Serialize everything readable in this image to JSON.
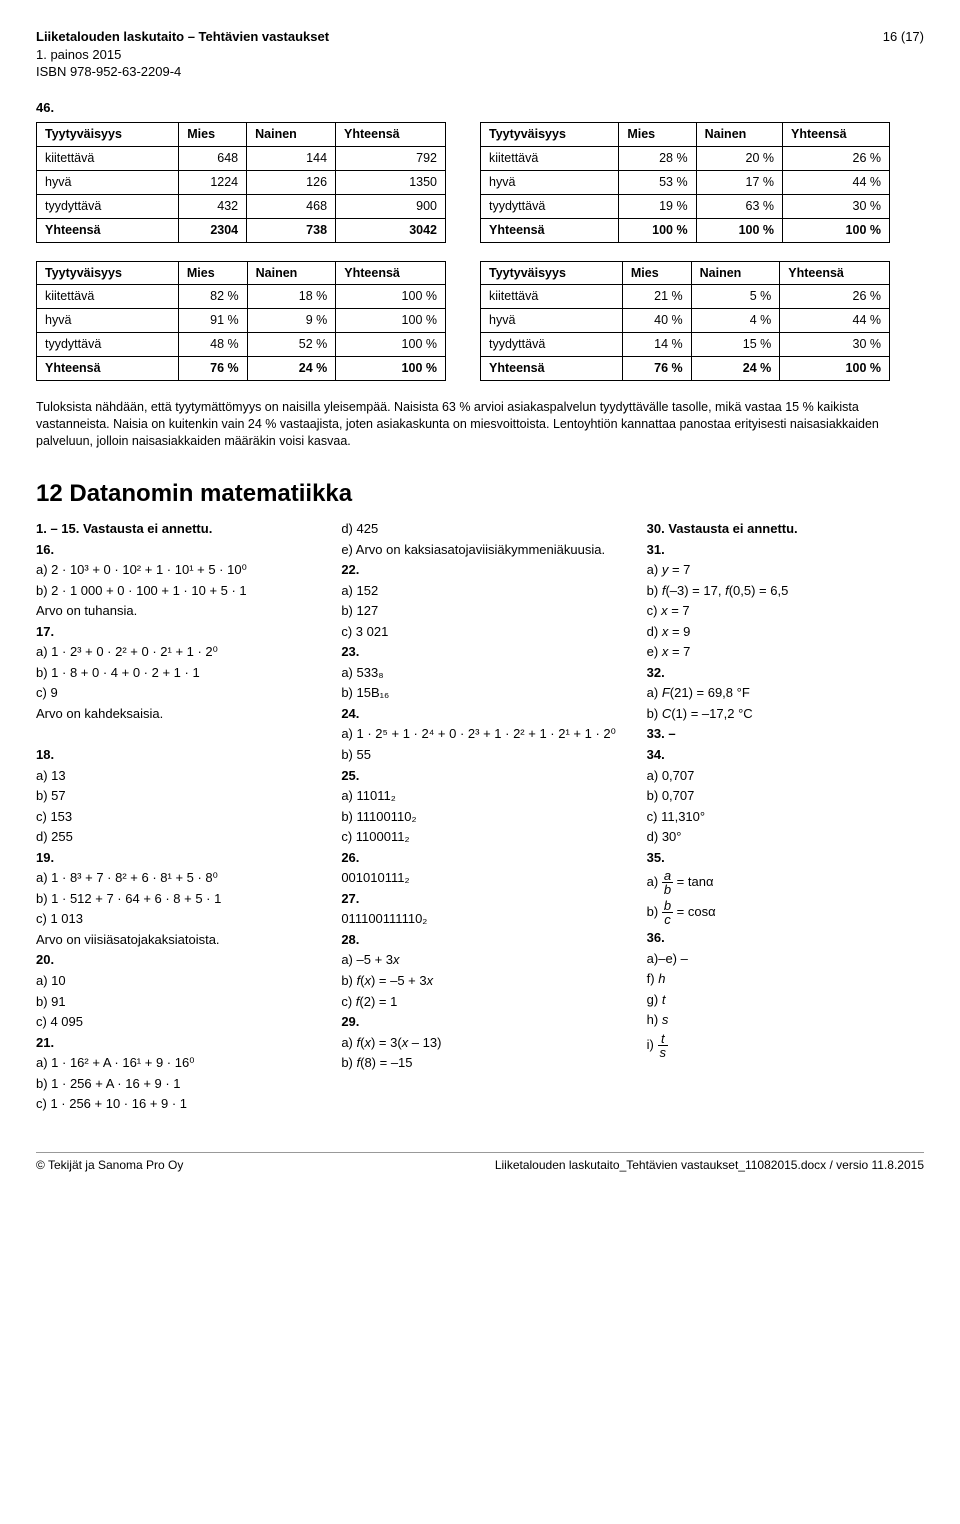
{
  "header": {
    "title": "Liiketalouden laskutaito – Tehtävien vastaukset",
    "edition": "1. painos 2015",
    "isbn": "ISBN 978-952-63-2209-4",
    "page": "16 (17)"
  },
  "q46": "46.",
  "tableHeaders": [
    "Tyytyväisyys",
    "Mies",
    "Nainen",
    "Yhteensä"
  ],
  "t1": {
    "rows": [
      [
        "kiitettävä",
        "648",
        "144",
        "792"
      ],
      [
        "hyvä",
        "1224",
        "126",
        "1350"
      ],
      [
        "tyydyttävä",
        "432",
        "468",
        "900"
      ],
      [
        "Yhteensä",
        "2304",
        "738",
        "3042"
      ]
    ]
  },
  "t2": {
    "rows": [
      [
        "kiitettävä",
        "28 %",
        "20 %",
        "26 %"
      ],
      [
        "hyvä",
        "53 %",
        "17 %",
        "44 %"
      ],
      [
        "tyydyttävä",
        "19 %",
        "63 %",
        "30 %"
      ],
      [
        "Yhteensä",
        "100 %",
        "100 %",
        "100 %"
      ]
    ]
  },
  "t3": {
    "rows": [
      [
        "kiitettävä",
        "82 %",
        "18 %",
        "100 %"
      ],
      [
        "hyvä",
        "91 %",
        "9 %",
        "100 %"
      ],
      [
        "tyydyttävä",
        "48 %",
        "52 %",
        "100 %"
      ],
      [
        "Yhteensä",
        "76 %",
        "24 %",
        "100 %"
      ]
    ]
  },
  "t4": {
    "rows": [
      [
        "kiitettävä",
        "21 %",
        "5 %",
        "26 %"
      ],
      [
        "hyvä",
        "40 %",
        "4 %",
        "44 %"
      ],
      [
        "tyydyttävä",
        "14 %",
        "15 %",
        "30 %"
      ],
      [
        "Yhteensä",
        "76 %",
        "24 %",
        "100 %"
      ]
    ]
  },
  "analysis": "Tuloksista nähdään, että tyytymättömyys on naisilla yleisempää. Naisista 63 % arvioi asiakaspalvelun tyydyttävälle tasolle, mikä vastaa 15 % kaikista vastanneista. Naisia on kuitenkin vain 24 % vastaajista, joten asiakaskunta on miesvoittoista. Lentoyhtiön kannattaa panostaa erityisesti naisasiakkaiden palveluun, jolloin naisasiakkaiden määräkin voisi kasvaa.",
  "sectionTitle": "12 Datanomin matematiikka",
  "col1": {
    "l1": "1. – 15. Vastausta ei annettu.",
    "l16": "16.",
    "l16a": "a) 2 · 10³ + 0 · 10² + 1 · 10¹ + 5 · 10⁰",
    "l16b": "b) 2 · 1 000 + 0 · 100 + 1 · 10 + 5 · 1",
    "l16c": "Arvo on tuhansia.",
    "l17": "17.",
    "l17a": "a) 1 · 2³ + 0 · 2² + 0 · 2¹ + 1 · 2⁰",
    "l17b": "b) 1 · 8 + 0 · 4 + 0 · 2 + 1 · 1",
    "l17c": "c) 9",
    "l17d": "Arvo on kahdeksaisia.",
    "l18": "18.",
    "l18a": "a) 13",
    "l18b": "b) 57",
    "l18c": "c) 153",
    "l18d": "d) 255",
    "l19": "19.",
    "l19a": "a) 1 · 8³ + 7 · 8² + 6 · 8¹ + 5 · 8⁰",
    "l19b": "b) 1 · 512 + 7 · 64 + 6 · 8 + 5 · 1",
    "l19c": "c) 1 013",
    "l19d": "Arvo on viisiäsatojakaksiatoista.",
    "l20": "20.",
    "l20a": "a) 10",
    "l20b": "b) 91",
    "l20c": "c) 4 095",
    "l21": "21.",
    "l21a": "a) 1 · 16² + A · 16¹ + 9 · 16⁰",
    "l21b": "b) 1 · 256 + A · 16 + 9 · 1",
    "l21c": "c) 1 · 256 + 10 · 16 + 9 · 1"
  },
  "col2": {
    "d425": "d) 425",
    "eArvo": "e) Arvo on kaksiasatojaviisiäkymmeniäkuusia.",
    "l22": "22.",
    "l22a": "a) 152",
    "l22b": "b) 127",
    "l22c": "c) 3 021",
    "l23": "23.",
    "l23a": "a) 533₈",
    "l23b": "b) 15B₁₆",
    "l24": "24.",
    "l24a": "a) 1 · 2⁵ + 1 · 2⁴ + 0 · 2³ + 1 · 2² + 1 · 2¹ + 1 · 2⁰",
    "l24b": "b) 55",
    "l25": "25.",
    "l25a": "a) 11011₂",
    "l25b": "b) 11100110₂",
    "l25c": "c) 1100011₂",
    "l26": "26.",
    "l26a": "001010111₂",
    "l27": "27.",
    "l27a": "011100111110₂",
    "l28": "28.",
    "l28a": "a) –5 + 3x",
    "l28b": "b) f(x) = –5 + 3x",
    "l28c": "c) f(2) = 1",
    "l29": "29.",
    "l29a": "a) f(x) = 3(x – 13)",
    "l29b": "b) f(8) = –15"
  },
  "col3": {
    "l30": "30. Vastausta ei annettu.",
    "l31": "31.",
    "l31a": "a) y = 7",
    "l31b": "b) f(–3) = 17, f(0,5) = 6,5",
    "l31c": "c) x = 7",
    "l31d": "d) x = 9",
    "l31e": "e) x = 7",
    "l32": "32.",
    "l32a": "a) F(21) = 69,8 °F",
    "l32b": "b) C(1) = –17,2 °C",
    "l33": "33. –",
    "l34": "34.",
    "l34a": "a) 0,707",
    "l34b": "b) 0,707",
    "l34c": "c) 11,310°",
    "l34d": "d) 30°",
    "l35": "35.",
    "l35aPre": "a) ",
    "l35aN": "a",
    "l35aD": "b",
    "l35aPost": " = tanα",
    "l35bPre": "b) ",
    "l35bN": "b",
    "l35bD": "c",
    "l35bPost": " = cosα",
    "l36": "36.",
    "l36a": "a)–e) –",
    "l36f": "f) h",
    "l36g": "g) t",
    "l36h": "h) s",
    "l36iPre": "i) ",
    "l36iN": "t",
    "l36iD": "s"
  },
  "footer": {
    "left": "© Tekijät ja Sanoma Pro Oy",
    "right": "Liiketalouden laskutaito_Tehtävien vastaukset_11082015.docx / versio 11.8.2015"
  }
}
